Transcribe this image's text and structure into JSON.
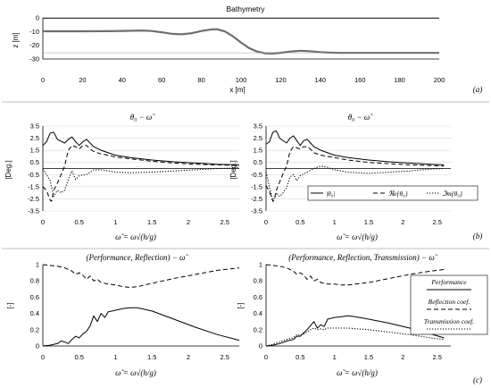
{
  "colors": {
    "line": "#000000",
    "bathy": "#6e6e6e",
    "divider": "#bfbfbf",
    "grid": "#d9d9d9",
    "panel_c_line": "#e0e0e0"
  },
  "panel_labels": {
    "a": "(a)",
    "b": "(b)",
    "c": "(c)"
  },
  "bathymetry": {
    "title": "Bathymetry",
    "xlabel": "x [m]",
    "ylabel": "z [m]",
    "xticks": [
      "0",
      "20",
      "40",
      "60",
      "80",
      "100",
      "120",
      "140",
      "160",
      "180",
      "200"
    ],
    "yticks": [
      "0",
      "-10",
      "-20",
      "-30"
    ]
  },
  "panel_b": {
    "title": "θ₀ − ω̃",
    "ylabel": "[Deg.]",
    "xlabel": "ω̃ = ω√(h/g)",
    "yticks": [
      "3.5",
      "2.5",
      "1.5",
      "0.5",
      "-0.5",
      "-1.5",
      "-2.5",
      "-3.5"
    ],
    "xticks": [
      "0",
      "0.5",
      "1",
      "1.5",
      "2",
      "2.5"
    ],
    "legend": [
      "|θ₀|",
      "ℜe{θ₀}",
      "ℑm{θ₀}"
    ]
  },
  "panel_c": {
    "title_left": "(Performance, Reflection) − ω̃",
    "title_right": "(Performance, Reflection, Transmission) − ω̃",
    "ylabel": "[-]",
    "xlabel": "ω̃ = ω√(h/g)",
    "yticks": [
      "1",
      "0.8",
      "0.6",
      "0.4",
      "0.2",
      "0"
    ],
    "xticks": [
      "0",
      "0.5",
      "1",
      "1.5",
      "2",
      "2.5"
    ],
    "legend": [
      "Performance",
      "Reflection coef.",
      "Transmission coef."
    ]
  },
  "chart_data": [
    {
      "type": "line",
      "title": "Bathymetry",
      "xlabel": "x [m]",
      "ylabel": "z [m]",
      "xlim": [
        0,
        200
      ],
      "ylim": [
        -30,
        0
      ],
      "series": [
        {
          "style": "solid",
          "x": [
            0,
            10,
            20,
            30,
            40,
            50,
            60,
            65,
            70,
            75,
            80,
            85,
            88,
            92,
            96,
            100,
            104,
            108,
            112,
            116,
            120,
            125,
            130,
            135,
            140,
            145,
            150,
            160,
            170,
            180,
            190,
            200
          ],
          "y": [
            -0.2,
            -0.2,
            -0.2,
            -0.2,
            -0.2,
            -0.2,
            -0.2,
            -0.2,
            -0.2,
            -0.2,
            -0.2,
            -0.2,
            -0.2,
            -0.2,
            -0.2,
            -0.2,
            -0.2,
            -0.2,
            -0.2,
            -0.2,
            -0.2,
            -0.2,
            -0.2,
            -0.2,
            -0.2,
            -0.2,
            -0.2,
            -0.2,
            -0.2,
            -0.2,
            -0.2,
            -0.2
          ]
        },
        {
          "style": "bathy",
          "x": [
            0,
            10,
            20,
            30,
            40,
            50,
            55,
            60,
            65,
            70,
            75,
            80,
            85,
            88,
            92,
            96,
            100,
            104,
            108,
            112,
            116,
            120,
            125,
            130,
            135,
            140,
            145,
            150,
            160,
            170,
            180,
            190,
            200
          ],
          "y": [
            -9.8,
            -9.8,
            -9.8,
            -9.7,
            -9.5,
            -9.2,
            -9.6,
            -10.5,
            -11.6,
            -12.0,
            -11.2,
            -9.6,
            -8.4,
            -8.3,
            -10.0,
            -13.5,
            -18.0,
            -22.0,
            -24.5,
            -25.8,
            -26.0,
            -25.5,
            -24.5,
            -24.0,
            -24.3,
            -25.0,
            -25.4,
            -25.5,
            -25.5,
            -25.5,
            -25.5,
            -25.5,
            -25.5
          ]
        }
      ]
    },
    {
      "type": "line",
      "title": "θ₀ − ω̃",
      "xlim": [
        0,
        2.7
      ],
      "ylim": [
        -3.5,
        3.5
      ],
      "series": [
        {
          "style": "solid",
          "x": [
            0,
            0.05,
            0.1,
            0.15,
            0.2,
            0.3,
            0.35,
            0.4,
            0.45,
            0.5,
            0.55,
            0.6,
            0.7,
            0.8,
            0.9,
            1.0,
            1.2,
            1.5,
            1.8,
            2.1,
            2.4,
            2.7
          ],
          "y": [
            1.9,
            2.2,
            2.9,
            3.0,
            2.4,
            2.1,
            2.4,
            2.6,
            2.2,
            1.9,
            2.2,
            2.4,
            1.8,
            1.5,
            1.3,
            1.1,
            0.9,
            0.7,
            0.55,
            0.45,
            0.35,
            0.3
          ]
        },
        {
          "style": "dashed",
          "x": [
            0,
            0.05,
            0.1,
            0.12,
            0.15,
            0.2,
            0.25,
            0.3,
            0.35,
            0.4,
            0.45,
            0.5,
            0.55,
            0.6,
            0.65,
            0.7,
            0.8,
            0.9,
            1.0,
            1.2,
            1.5,
            1.8,
            2.1,
            2.4,
            2.7
          ],
          "y": [
            -1.5,
            -1.8,
            -2.6,
            -2.7,
            -1.8,
            -1.2,
            -0.5,
            0.2,
            1.5,
            1.9,
            1.8,
            1.6,
            1.9,
            1.9,
            1.6,
            1.4,
            1.2,
            1.1,
            0.95,
            0.8,
            0.6,
            0.45,
            0.35,
            0.3,
            0.25
          ]
        },
        {
          "style": "dotted",
          "x": [
            0,
            0.05,
            0.1,
            0.15,
            0.2,
            0.25,
            0.3,
            0.35,
            0.4,
            0.45,
            0.5,
            0.6,
            0.7,
            0.8,
            0.9,
            1.0,
            1.2,
            1.5,
            1.8,
            2.1,
            2.4,
            2.7
          ],
          "y": [
            0.0,
            -0.5,
            -1.0,
            -2.3,
            -1.8,
            -2.0,
            -1.8,
            -0.9,
            -0.2,
            -0.9,
            -0.6,
            -0.5,
            -0.1,
            -0.1,
            -0.2,
            -0.3,
            -0.35,
            -0.3,
            -0.2,
            -0.1,
            0.0,
            0.05
          ]
        }
      ]
    },
    {
      "type": "line",
      "title": "θ₀ − ω̃",
      "xlim": [
        0,
        2.7
      ],
      "ylim": [
        -3.5,
        3.5
      ],
      "legend": [
        "|θ₀|",
        "ℜe{θ₀}",
        "ℑm{θ₀}"
      ],
      "series": [
        {
          "style": "solid",
          "x": [
            0,
            0.05,
            0.1,
            0.15,
            0.2,
            0.3,
            0.35,
            0.4,
            0.45,
            0.5,
            0.55,
            0.6,
            0.7,
            0.8,
            0.9,
            1.0,
            1.2,
            1.5,
            1.8,
            2.1,
            2.4,
            2.6
          ],
          "y": [
            2.0,
            2.2,
            3.0,
            3.1,
            2.5,
            2.1,
            2.5,
            2.7,
            2.3,
            1.9,
            2.3,
            2.4,
            1.8,
            1.5,
            1.3,
            1.1,
            0.9,
            0.7,
            0.55,
            0.45,
            0.35,
            0.3
          ]
        },
        {
          "style": "dashed",
          "x": [
            0,
            0.05,
            0.1,
            0.12,
            0.15,
            0.2,
            0.25,
            0.3,
            0.35,
            0.4,
            0.45,
            0.5,
            0.55,
            0.6,
            0.65,
            0.7,
            0.8,
            0.9,
            1.0,
            1.2,
            1.5,
            1.8,
            2.1,
            2.4,
            2.6
          ],
          "y": [
            -1.4,
            -1.9,
            -2.7,
            -2.6,
            -1.8,
            -1.1,
            -0.4,
            0.2,
            1.4,
            1.8,
            1.7,
            1.6,
            1.8,
            1.8,
            1.6,
            1.3,
            1.1,
            1.0,
            0.9,
            0.7,
            0.5,
            0.4,
            0.3,
            0.25,
            0.2
          ]
        },
        {
          "style": "dotted",
          "x": [
            0,
            0.05,
            0.1,
            0.15,
            0.2,
            0.25,
            0.3,
            0.35,
            0.4,
            0.45,
            0.5,
            0.6,
            0.7,
            0.8,
            0.9,
            1.0,
            1.2,
            1.5,
            1.8,
            2.1,
            2.4,
            2.6
          ],
          "y": [
            -0.3,
            -1.5,
            -2.7,
            -2.0,
            -2.3,
            -2.0,
            -1.6,
            -0.7,
            -0.5,
            -1.0,
            -0.6,
            -0.3,
            0.0,
            0.2,
            0.1,
            -0.1,
            -0.3,
            -0.4,
            -0.3,
            -0.2,
            -0.05,
            0.0
          ]
        }
      ]
    },
    {
      "type": "line",
      "title": "(Performance, Reflection) − ω̃",
      "xlim": [
        0,
        2.7
      ],
      "ylim": [
        0,
        1
      ],
      "series": [
        {
          "style": "dashed",
          "x": [
            0,
            0.1,
            0.2,
            0.3,
            0.4,
            0.45,
            0.5,
            0.55,
            0.6,
            0.65,
            0.7,
            0.75,
            0.8,
            0.9,
            1.0,
            1.1,
            1.2,
            1.3,
            1.5,
            1.8,
            2.1,
            2.4,
            2.7
          ],
          "y": [
            1.0,
            0.99,
            0.98,
            0.96,
            0.92,
            0.88,
            0.9,
            0.87,
            0.82,
            0.86,
            0.8,
            0.82,
            0.78,
            0.76,
            0.75,
            0.73,
            0.72,
            0.73,
            0.77,
            0.83,
            0.88,
            0.93,
            0.96
          ]
        },
        {
          "style": "solid",
          "x": [
            0,
            0.1,
            0.2,
            0.25,
            0.3,
            0.35,
            0.4,
            0.45,
            0.5,
            0.55,
            0.6,
            0.65,
            0.7,
            0.75,
            0.8,
            0.85,
            0.9,
            1.0,
            1.1,
            1.2,
            1.3,
            1.5,
            1.8,
            2.1,
            2.4,
            2.7
          ],
          "y": [
            0.0,
            0.01,
            0.03,
            0.06,
            0.05,
            0.03,
            0.08,
            0.12,
            0.1,
            0.15,
            0.18,
            0.25,
            0.37,
            0.3,
            0.4,
            0.35,
            0.42,
            0.44,
            0.46,
            0.47,
            0.47,
            0.43,
            0.33,
            0.23,
            0.14,
            0.07
          ]
        }
      ]
    },
    {
      "type": "line",
      "title": "(Performance, Reflection, Transmission) − ω̃",
      "xlim": [
        0,
        2.7
      ],
      "ylim": [
        0,
        1
      ],
      "legend": [
        "Performance",
        "Reflection coef.",
        "Transmission coef."
      ],
      "series": [
        {
          "style": "solid",
          "x": [
            0,
            0.1,
            0.2,
            0.3,
            0.4,
            0.45,
            0.5,
            0.55,
            0.6,
            0.65,
            0.7,
            0.75,
            0.8,
            0.85,
            0.9,
            1.0,
            1.1,
            1.2,
            1.3,
            1.5,
            1.8,
            2.1,
            2.4,
            2.6
          ],
          "y": [
            0.0,
            0.01,
            0.03,
            0.06,
            0.08,
            0.12,
            0.12,
            0.16,
            0.2,
            0.25,
            0.3,
            0.22,
            0.26,
            0.24,
            0.33,
            0.35,
            0.36,
            0.37,
            0.36,
            0.33,
            0.28,
            0.22,
            0.15,
            0.1
          ]
        },
        {
          "style": "dashed",
          "x": [
            0,
            0.1,
            0.2,
            0.3,
            0.4,
            0.45,
            0.5,
            0.55,
            0.6,
            0.65,
            0.7,
            0.75,
            0.8,
            0.9,
            1.0,
            1.1,
            1.2,
            1.3,
            1.5,
            1.8,
            2.1,
            2.4,
            2.6
          ],
          "y": [
            1.0,
            0.99,
            0.98,
            0.96,
            0.92,
            0.88,
            0.9,
            0.87,
            0.82,
            0.86,
            0.8,
            0.82,
            0.78,
            0.76,
            0.76,
            0.75,
            0.75,
            0.76,
            0.78,
            0.83,
            0.88,
            0.92,
            0.94
          ]
        },
        {
          "style": "dotted",
          "x": [
            0,
            0.1,
            0.2,
            0.3,
            0.4,
            0.45,
            0.5,
            0.55,
            0.6,
            0.65,
            0.7,
            0.75,
            0.8,
            0.85,
            0.9,
            1.0,
            1.2,
            1.5,
            1.8,
            2.1,
            2.4,
            2.6
          ],
          "y": [
            0.0,
            0.02,
            0.05,
            0.08,
            0.1,
            0.14,
            0.13,
            0.15,
            0.17,
            0.2,
            0.22,
            0.2,
            0.21,
            0.2,
            0.22,
            0.22,
            0.22,
            0.2,
            0.17,
            0.14,
            0.1,
            0.08
          ]
        }
      ]
    }
  ]
}
